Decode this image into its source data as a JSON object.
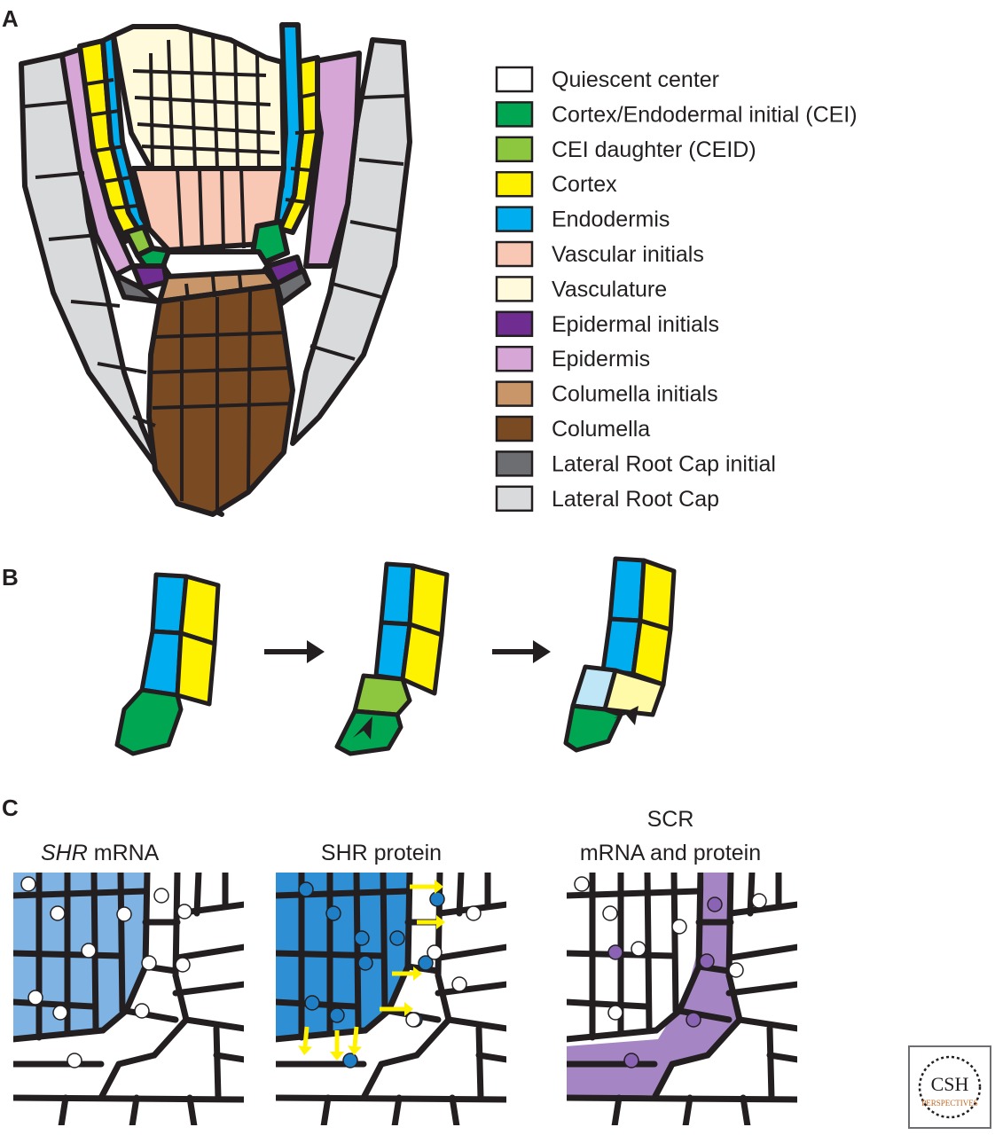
{
  "panels": {
    "a": "A",
    "b": "B",
    "c": "C"
  },
  "legend": [
    {
      "label": "Quiescent center",
      "color": "#ffffff",
      "icon": "quiescent-center-swatch"
    },
    {
      "label": "Cortex/Endodermal initial (CEI)",
      "color": "#00a651",
      "icon": "cei-swatch"
    },
    {
      "label": "CEI daughter (CEID)",
      "color": "#8dc63f",
      "icon": "ceid-swatch"
    },
    {
      "label": "Cortex",
      "color": "#fff200",
      "icon": "cortex-swatch"
    },
    {
      "label": "Endodermis",
      "color": "#00aeef",
      "icon": "endodermis-swatch"
    },
    {
      "label": "Vascular initials",
      "color": "#f9c8b4",
      "icon": "vascular-initials-swatch"
    },
    {
      "label": "Vasculature",
      "color": "#fffadc",
      "icon": "vasculature-swatch"
    },
    {
      "label": "Epidermal initials",
      "color": "#6f2c91",
      "icon": "epidermal-initials-swatch"
    },
    {
      "label": "Epidermis",
      "color": "#d6a6d6",
      "icon": "epidermis-swatch"
    },
    {
      "label": "Columella initials",
      "color": "#c9966a",
      "icon": "columella-initials-swatch"
    },
    {
      "label": "Columella",
      "color": "#7a4a22",
      "icon": "columella-swatch"
    },
    {
      "label": "Lateral Root Cap initial",
      "color": "#6d6e71",
      "icon": "lrc-initial-swatch"
    },
    {
      "label": "Lateral Root Cap",
      "color": "#d9dadc",
      "icon": "lrc-swatch"
    }
  ],
  "panel_c": {
    "shr_mrna_italic": "SHR",
    "shr_mrna_rest": " mRNA",
    "shr_protein": "SHR protein",
    "scr_line1": "SCR",
    "scr_line2": "mRNA and protein"
  },
  "colors": {
    "outline": "#231f20",
    "shr_mrna_fill": "#7fb3e3",
    "shr_protein_fill": "#2f8fd4",
    "nucleus_blue": "#1f7fc6",
    "scr_fill": "#a585c4",
    "scr_nucleus": "#8b63b4",
    "arrow_yellow": "#fff200",
    "ceid_light_blue": "#bfe6f7",
    "ceid_light_yellow": "#fffaa8"
  },
  "logo": {
    "line1": "CSH",
    "line2": "PERSPECTIVES"
  }
}
